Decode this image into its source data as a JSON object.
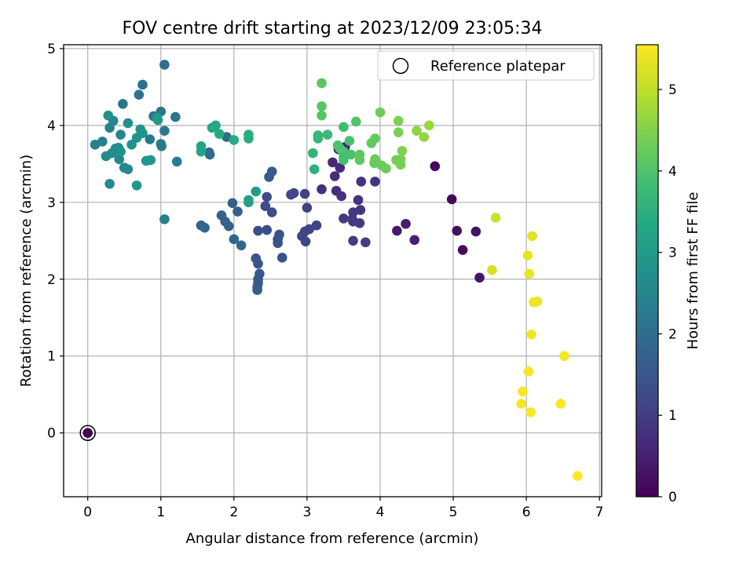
{
  "chart_data": {
    "type": "scatter",
    "title": "FOV centre drift starting at 2023/12/09 23:05:34",
    "xlabel": "Angular distance from reference (arcmin)",
    "ylabel": "Rotation from reference (arcmin)",
    "xlim": [
      -0.33,
      7.03
    ],
    "ylim": [
      -0.83,
      5.05
    ],
    "xticks": [
      "0",
      "1",
      "2",
      "3",
      "4",
      "5",
      "6",
      "7"
    ],
    "yticks": [
      "0",
      "1",
      "2",
      "3",
      "4",
      "5"
    ],
    "grid": true,
    "legend": {
      "position": "top-right",
      "entries": [
        "Reference platepar"
      ]
    },
    "reference_point": {
      "x": 0,
      "y": 0
    },
    "colorbar": {
      "label": "Hours from first FF file",
      "range": [
        0,
        5.55
      ],
      "ticks": [
        "0",
        "1",
        "2",
        "3",
        "4",
        "5"
      ],
      "colormap": "viridis"
    },
    "series": [
      {
        "points": [
          [
            0.0,
            0.0,
            0.02
          ],
          [
            4.75,
            3.47,
            0.15
          ],
          [
            4.98,
            3.04,
            0.12
          ],
          [
            5.05,
            2.63,
            0.2
          ],
          [
            5.31,
            2.62,
            0.25
          ],
          [
            5.13,
            2.38,
            0.18
          ],
          [
            5.36,
            2.02,
            0.3
          ],
          [
            4.23,
            2.63,
            0.4
          ],
          [
            4.35,
            2.72,
            0.45
          ],
          [
            4.47,
            2.51,
            0.5
          ],
          [
            3.43,
            3.69,
            0.6
          ],
          [
            3.52,
            3.72,
            0.62
          ],
          [
            3.35,
            3.52,
            0.65
          ],
          [
            3.45,
            3.45,
            0.68
          ],
          [
            3.38,
            3.34,
            0.7
          ],
          [
            3.4,
            3.15,
            0.72
          ],
          [
            3.2,
            3.17,
            0.75
          ],
          [
            3.47,
            3.08,
            0.78
          ],
          [
            3.74,
            3.27,
            0.8
          ],
          [
            3.93,
            3.27,
            0.82
          ],
          [
            3.7,
            3.03,
            0.84
          ],
          [
            3.73,
            2.9,
            0.86
          ],
          [
            3.63,
            2.87,
            0.88
          ],
          [
            3.5,
            2.79,
            0.9
          ],
          [
            3.62,
            2.78,
            0.92
          ],
          [
            3.63,
            2.75,
            0.94
          ],
          [
            3.72,
            2.73,
            0.96
          ],
          [
            3.63,
            2.5,
            0.98
          ],
          [
            3.8,
            2.48,
            1.0
          ],
          [
            2.97,
            3.11,
            1.05
          ],
          [
            3.0,
            2.93,
            1.08
          ],
          [
            3.13,
            2.7,
            1.1
          ],
          [
            3.03,
            2.65,
            1.12
          ],
          [
            2.97,
            2.62,
            1.14
          ],
          [
            2.93,
            2.56,
            1.16
          ],
          [
            2.98,
            2.49,
            1.18
          ],
          [
            2.78,
            3.1,
            1.2
          ],
          [
            2.82,
            3.12,
            1.22
          ],
          [
            2.45,
            3.07,
            1.25
          ],
          [
            2.43,
            2.95,
            1.27
          ],
          [
            2.52,
            2.87,
            1.3
          ],
          [
            2.45,
            2.64,
            1.32
          ],
          [
            2.33,
            2.63,
            1.34
          ],
          [
            2.62,
            2.58,
            1.36
          ],
          [
            2.6,
            2.52,
            1.38
          ],
          [
            2.6,
            2.47,
            1.4
          ],
          [
            2.66,
            2.28,
            1.42
          ],
          [
            2.3,
            2.27,
            1.45
          ],
          [
            2.33,
            2.2,
            1.47
          ],
          [
            2.35,
            2.07,
            1.5
          ],
          [
            2.33,
            2.0,
            1.52
          ],
          [
            2.33,
            1.95,
            1.54
          ],
          [
            2.32,
            1.9,
            1.56
          ],
          [
            2.32,
            1.86,
            1.58
          ],
          [
            2.48,
            3.33,
            1.6
          ],
          [
            2.52,
            3.4,
            1.62
          ],
          [
            1.98,
            2.99,
            1.65
          ],
          [
            2.05,
            2.88,
            1.68
          ],
          [
            1.83,
            2.83,
            1.7
          ],
          [
            1.88,
            2.75,
            1.72
          ],
          [
            1.93,
            2.69,
            1.74
          ],
          [
            1.55,
            2.7,
            1.76
          ],
          [
            1.6,
            2.67,
            1.78
          ],
          [
            2.0,
            2.52,
            1.8
          ],
          [
            2.1,
            2.44,
            1.82
          ],
          [
            1.66,
            3.65,
            1.9
          ],
          [
            1.67,
            3.62,
            1.92
          ],
          [
            1.9,
            3.85,
            1.95
          ],
          [
            1.05,
            4.79,
            2.0
          ],
          [
            0.75,
            4.53,
            2.05
          ],
          [
            0.48,
            4.28,
            2.1
          ],
          [
            0.7,
            4.4,
            2.12
          ],
          [
            1.2,
            4.11,
            2.15
          ],
          [
            1.0,
            4.18,
            2.18
          ],
          [
            0.9,
            4.12,
            2.2
          ],
          [
            1.05,
            3.93,
            2.22
          ],
          [
            0.85,
            3.82,
            2.25
          ],
          [
            1.01,
            3.73,
            2.28
          ],
          [
            1.0,
            3.76,
            2.3
          ],
          [
            1.22,
            3.53,
            2.32
          ],
          [
            1.05,
            2.78,
            2.35
          ],
          [
            0.1,
            3.75,
            2.4
          ],
          [
            0.2,
            3.79,
            2.42
          ],
          [
            0.3,
            3.97,
            2.45
          ],
          [
            0.35,
            4.06,
            2.48
          ],
          [
            0.45,
            3.88,
            2.5
          ],
          [
            0.42,
            3.71,
            2.52
          ],
          [
            0.43,
            3.56,
            2.55
          ],
          [
            0.5,
            3.45,
            2.58
          ],
          [
            0.55,
            3.43,
            2.6
          ],
          [
            0.3,
            3.24,
            2.62
          ],
          [
            0.25,
            3.6,
            2.65
          ],
          [
            0.33,
            3.64,
            2.68
          ],
          [
            0.38,
            3.7,
            2.7
          ],
          [
            0.45,
            3.66,
            2.72
          ],
          [
            0.28,
            4.13,
            2.75
          ],
          [
            0.55,
            4.03,
            2.78
          ],
          [
            0.6,
            3.75,
            2.8
          ],
          [
            0.72,
            3.95,
            2.82
          ],
          [
            0.75,
            3.9,
            2.85
          ],
          [
            0.67,
            3.84,
            2.88
          ],
          [
            0.8,
            3.54,
            2.9
          ],
          [
            0.86,
            3.55,
            2.92
          ],
          [
            0.67,
            3.22,
            2.95
          ],
          [
            0.95,
            4.1,
            3.0
          ],
          [
            0.96,
            4.07,
            3.02
          ],
          [
            1.7,
            3.97,
            3.3
          ],
          [
            1.75,
            4.0,
            3.35
          ],
          [
            1.8,
            3.89,
            3.4
          ],
          [
            2.0,
            3.81,
            3.42
          ],
          [
            2.2,
            3.83,
            3.45
          ],
          [
            2.2,
            3.88,
            3.48
          ],
          [
            1.55,
            3.73,
            3.2
          ],
          [
            1.55,
            3.66,
            3.25
          ],
          [
            2.2,
            3.0,
            3.1
          ],
          [
            2.2,
            3.03,
            3.15
          ],
          [
            2.3,
            3.14,
            3.05
          ],
          [
            3.08,
            3.64,
            3.6
          ],
          [
            3.1,
            3.43,
            3.55
          ],
          [
            3.15,
            3.83,
            3.65
          ],
          [
            3.15,
            3.87,
            3.7
          ],
          [
            3.28,
            3.88,
            3.75
          ],
          [
            3.5,
            3.98,
            3.8
          ],
          [
            3.5,
            3.59,
            3.85
          ],
          [
            3.5,
            3.55,
            3.88
          ],
          [
            3.5,
            3.66,
            3.9
          ],
          [
            3.58,
            3.8,
            3.92
          ],
          [
            3.6,
            3.62,
            3.95
          ],
          [
            3.42,
            3.74,
            3.97
          ],
          [
            3.45,
            3.7,
            4.0
          ],
          [
            3.67,
            4.05,
            4.02
          ],
          [
            3.2,
            4.13,
            4.05
          ],
          [
            3.2,
            4.25,
            4.08
          ],
          [
            3.2,
            4.55,
            4.1
          ],
          [
            3.72,
            3.62,
            4.12
          ],
          [
            3.72,
            3.55,
            4.15
          ],
          [
            3.88,
            3.77,
            4.18
          ],
          [
            3.93,
            3.83,
            4.2
          ],
          [
            3.92,
            3.51,
            4.22
          ],
          [
            3.93,
            3.56,
            4.25
          ],
          [
            4.02,
            3.48,
            4.28
          ],
          [
            4.08,
            3.44,
            4.3
          ],
          [
            4.0,
            4.17,
            4.32
          ],
          [
            4.22,
            3.55,
            4.35
          ],
          [
            4.28,
            3.56,
            4.38
          ],
          [
            4.28,
            3.49,
            4.4
          ],
          [
            4.25,
            3.91,
            4.42
          ],
          [
            4.25,
            4.06,
            4.45
          ],
          [
            4.3,
            3.67,
            4.48
          ],
          [
            4.5,
            3.93,
            4.6
          ],
          [
            4.6,
            3.85,
            4.65
          ],
          [
            4.67,
            4.0,
            4.7
          ],
          [
            5.58,
            2.8,
            5.1
          ],
          [
            5.53,
            2.12,
            5.2
          ],
          [
            6.08,
            2.56,
            5.3
          ],
          [
            6.02,
            2.31,
            5.35
          ],
          [
            6.04,
            2.07,
            5.38
          ],
          [
            6.1,
            1.7,
            5.4
          ],
          [
            6.15,
            1.71,
            5.42
          ],
          [
            6.07,
            1.28,
            5.45
          ],
          [
            6.52,
            1.0,
            5.47
          ],
          [
            6.03,
            0.8,
            5.48
          ],
          [
            5.95,
            0.54,
            5.5
          ],
          [
            5.93,
            0.38,
            5.5
          ],
          [
            6.47,
            0.38,
            5.52
          ],
          [
            6.06,
            0.27,
            5.53
          ],
          [
            6.7,
            -0.56,
            5.55
          ]
        ]
      }
    ]
  }
}
